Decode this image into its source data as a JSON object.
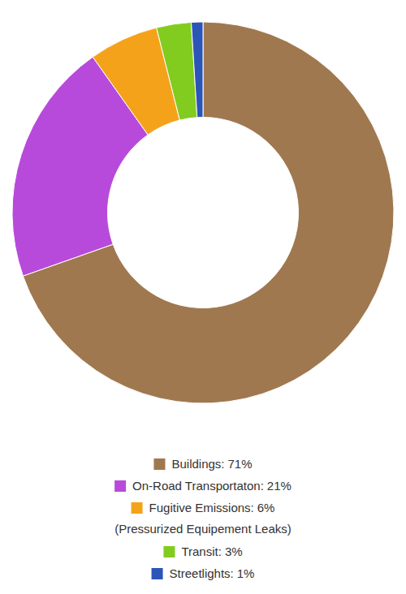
{
  "chart_data": {
    "type": "donut",
    "categories": [
      "Buildings:",
      "On-Road Transportaton:",
      "Fugitive Emissions:",
      "Transit:",
      "Streetlights:"
    ],
    "values": [
      71,
      21,
      6,
      3,
      1
    ],
    "value_labels": [
      "71%",
      "21%",
      "6%",
      "3%",
      "1%"
    ],
    "legend_notes": [
      null,
      null,
      "(Pressurized Equipement Leaks)",
      null,
      null
    ],
    "colors": [
      "#a0784f",
      "#b84adb",
      "#f5a21b",
      "#82cc1f",
      "#2c55b8"
    ],
    "legend": "bottom"
  }
}
